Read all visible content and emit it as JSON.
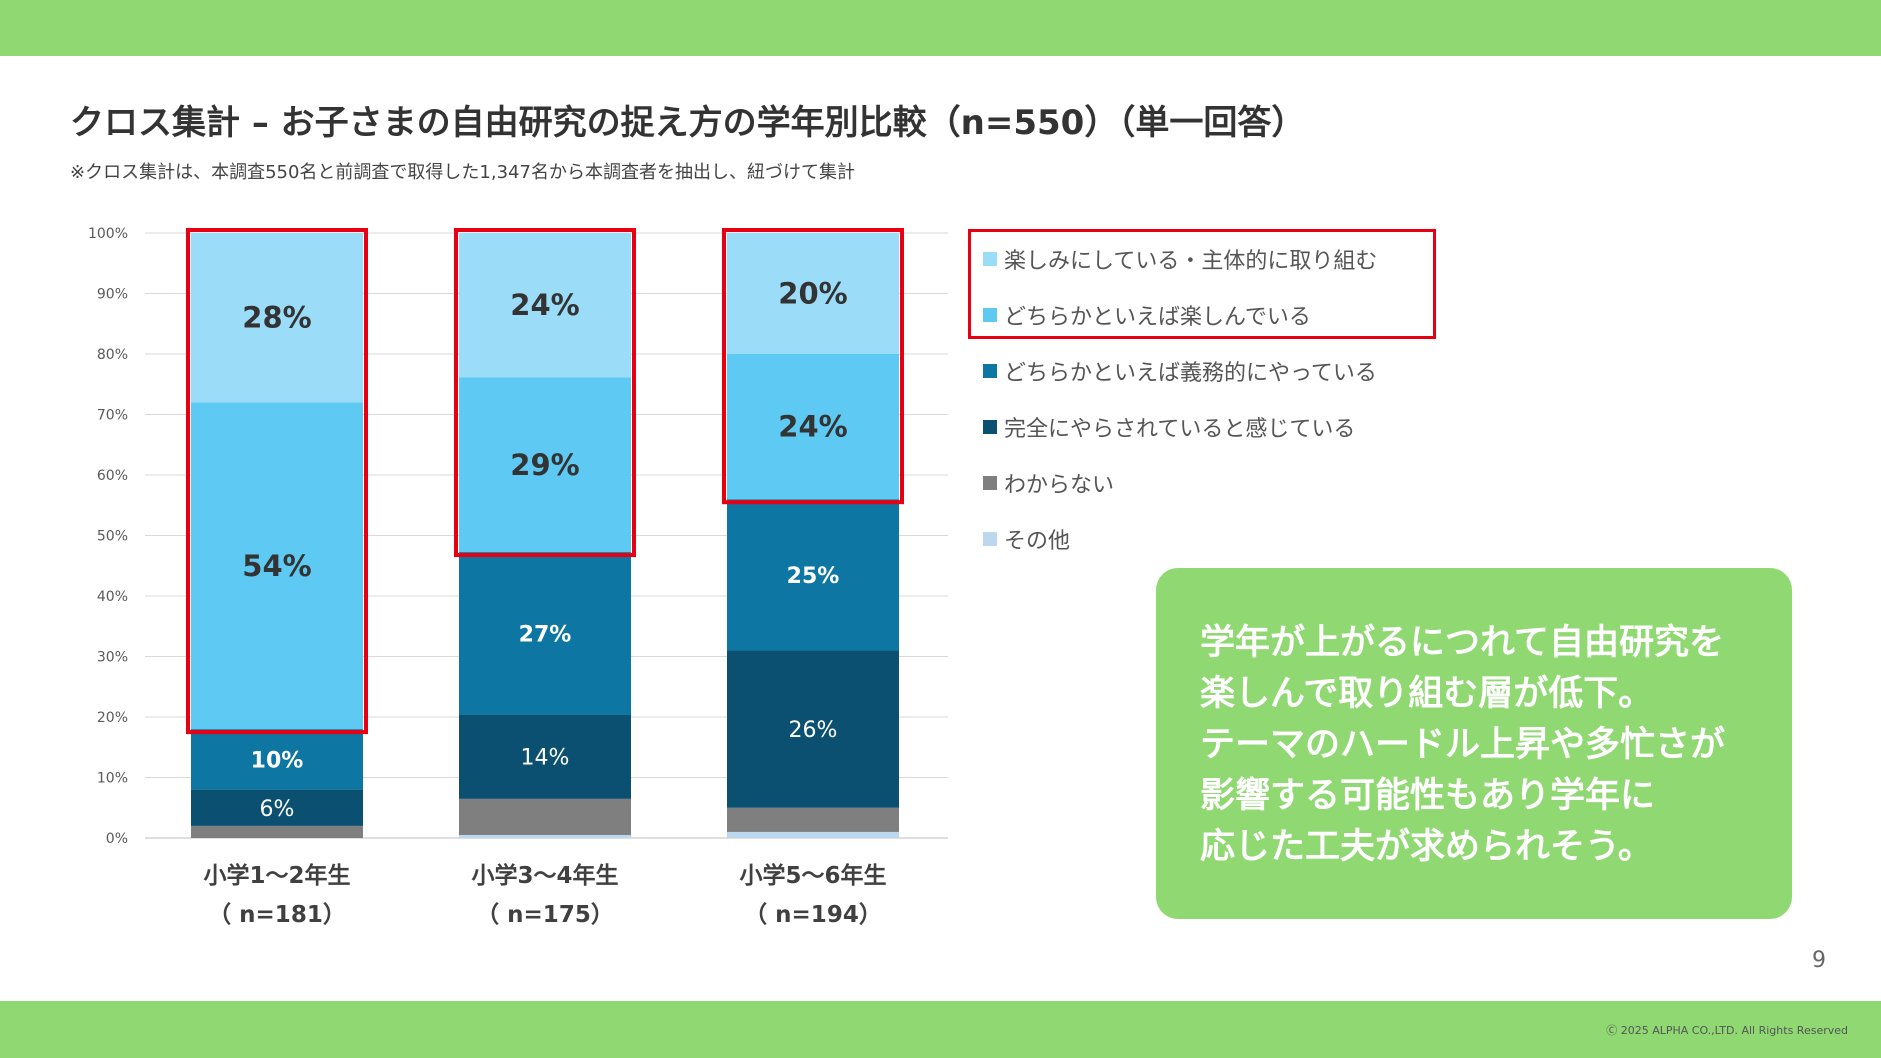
{
  "header": {
    "title": "クロス集計 – お子さまの自由研究の捉え方の学年別比較（n=550）（単一回答）",
    "note": "※クロス集計は、本調査550名と前調査で取得した1,347名から本調査者を抽出し、紐づけて集計"
  },
  "chart_data": {
    "type": "bar",
    "stacked": true,
    "percent": true,
    "categories": [
      {
        "line1": "小学1～2年生",
        "line2": "（ n=181）"
      },
      {
        "line1": "小学3～4年生",
        "line2": "（ n=175）"
      },
      {
        "line1": "小学5～6年生",
        "line2": "（ n=194）"
      }
    ],
    "y_ticks": [
      "0%",
      "10%",
      "20%",
      "30%",
      "40%",
      "50%",
      "60%",
      "70%",
      "80%",
      "90%",
      "100%"
    ],
    "ylim": [
      0,
      100
    ],
    "grid": true,
    "series": [
      {
        "name": "楽しみにしている・主体的に取り組む",
        "color": "#9bdcf8",
        "values": [
          28,
          24,
          20
        ],
        "labels": [
          "28%",
          "24%",
          "20%"
        ],
        "label_color": "#333333"
      },
      {
        "name": "どちらかといえば楽しんでいる",
        "color": "#5ecaf3",
        "values": [
          54,
          29,
          24
        ],
        "labels": [
          "54%",
          "29%",
          "24%"
        ],
        "label_color": "#333333"
      },
      {
        "name": "どちらかといえば義務的にやっている",
        "color": "#0e76a3",
        "values": [
          10,
          27,
          25
        ],
        "labels": [
          "10%",
          "27%",
          "25%"
        ],
        "label_color": "#ffffff"
      },
      {
        "name": "完全にやらされていると感じている",
        "color": "#0b5070",
        "values": [
          6,
          14,
          26
        ],
        "labels": [
          "6%",
          "14%",
          "26%"
        ],
        "label_color": "#ffffff"
      },
      {
        "name": "わからない",
        "color": "#7f7f7f",
        "values": [
          2,
          6,
          4
        ],
        "labels": [
          "",
          "",
          ""
        ],
        "label_color": "#ffffff"
      },
      {
        "name": "その他",
        "color": "#bcd7ee",
        "values": [
          0,
          0.5,
          1
        ],
        "labels": [
          "",
          "",
          ""
        ],
        "label_color": "#ffffff"
      }
    ],
    "highlight_top_series": 2,
    "highlight_color": "#e60012"
  },
  "callout": {
    "text": "学年が上がるにつれて自由研究を\n楽しんで取り組む層が低下。\nテーマのハードル上昇や多忙さが\n影響する可能性もあり学年に\n応じた工夫が求められそう。"
  },
  "footer": {
    "page_number": "9",
    "copyright": "Ⓒ 2025 ALPHA CO.,LTD. All Rights Reserved"
  },
  "colors": {
    "brand_green": "#8fd872",
    "highlight_red": "#e60012"
  }
}
